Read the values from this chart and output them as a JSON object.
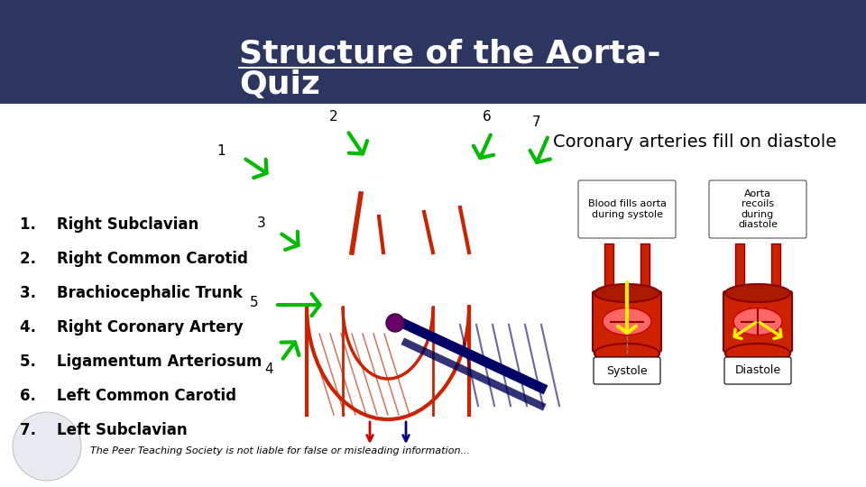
{
  "title_line1": "Structure of the Aorta-",
  "title_line2": "Quiz",
  "title_color": "#FFFFFF",
  "title_bg_color": "#2D3561",
  "title_fontsize": 26,
  "list_items": [
    "1.    Right Subclavian",
    "2.    Right Common Carotid",
    "3.    Brachiocephalic Trunk",
    "4.    Right Coronary Artery",
    "5.    Ligamentum Arteriosum",
    "6.    Left Common Carotid",
    "7.    Left Subclavian"
  ],
  "list_fontsize": 12,
  "coronary_title": "Coronary arteries fill on diastole",
  "coronary_title_fontsize": 14,
  "footer_text": "The Peer Teaching Society is not liable for false or misleading information...",
  "footer_fontsize": 8,
  "bg_color": "#FFFFFF",
  "arrow_color": "#00BB00"
}
